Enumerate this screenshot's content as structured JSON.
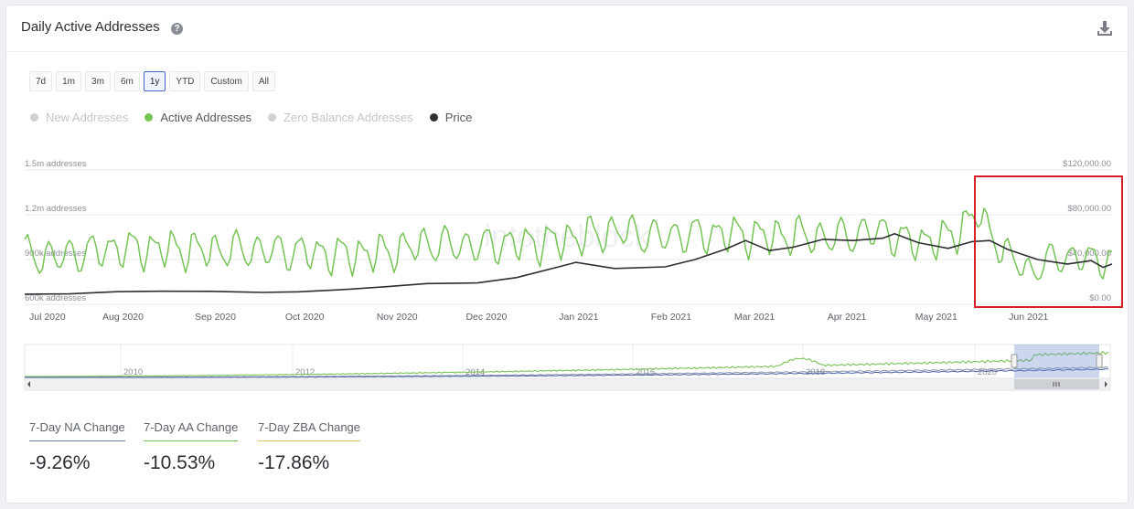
{
  "header": {
    "title": "Daily Active Addresses",
    "help_icon": "question-circle-icon",
    "download_icon": "download-icon"
  },
  "ranges": [
    {
      "label": "7d",
      "active": false
    },
    {
      "label": "1m",
      "active": false
    },
    {
      "label": "3m",
      "active": false
    },
    {
      "label": "6m",
      "active": false
    },
    {
      "label": "1y",
      "active": true
    },
    {
      "label": "YTD",
      "active": false
    },
    {
      "label": "Custom",
      "active": false
    },
    {
      "label": "All",
      "active": false
    }
  ],
  "legend": [
    {
      "label": "New Addresses",
      "color": "#cfd1d4",
      "active": false
    },
    {
      "label": "Active Addresses",
      "color": "#76c356",
      "active": true
    },
    {
      "label": "Zero Balance Addresses",
      "color": "#cfd1d4",
      "active": false
    },
    {
      "label": "Price",
      "color": "#2d2f33",
      "active": true
    }
  ],
  "watermark": "intotheblock",
  "chart_data": {
    "type": "line",
    "left_axis": {
      "ticks": [
        "1.5m addresses",
        "1.2m addresses",
        "900k addresses",
        "600k addresses"
      ],
      "values": [
        1500000,
        1200000,
        900000,
        600000
      ]
    },
    "right_axis": {
      "ticks": [
        "$120,000.00",
        "$80,000.00",
        "$40,000.00",
        "$0.00"
      ],
      "values": [
        120000,
        80000,
        40000,
        0
      ]
    },
    "x_ticks": [
      "Jul 2020",
      "Aug 2020",
      "Sep 2020",
      "Oct 2020",
      "Nov 2020",
      "Dec 2020",
      "Jan 2021",
      "Feb 2021",
      "Mar 2021",
      "Apr 2021",
      "May 2021",
      "Jun 2021"
    ],
    "series": [
      {
        "name": "Active Addresses",
        "color": "#76c356",
        "axis": "left",
        "anchors": [
          [
            0,
            920000
          ],
          [
            10,
            900000
          ],
          [
            20,
            930000
          ],
          [
            30,
            960000
          ],
          [
            45,
            960000
          ],
          [
            60,
            950000
          ],
          [
            75,
            950000
          ],
          [
            90,
            940000
          ],
          [
            105,
            920000
          ],
          [
            120,
            930000
          ],
          [
            135,
            990000
          ],
          [
            150,
            980000
          ],
          [
            160,
            990000
          ],
          [
            175,
            1000000
          ],
          [
            190,
            1050000
          ],
          [
            200,
            1080000
          ],
          [
            210,
            1040000
          ],
          [
            220,
            1050000
          ],
          [
            235,
            1060000
          ],
          [
            250,
            1040000
          ],
          [
            260,
            1050000
          ],
          [
            270,
            1030000
          ],
          [
            280,
            1060000
          ],
          [
            288,
            1080000
          ],
          [
            295,
            1010000
          ],
          [
            303,
            1010000
          ],
          [
            310,
            1030000
          ],
          [
            320,
            1200000
          ],
          [
            328,
            950000
          ],
          [
            338,
            800000
          ],
          [
            345,
            900000
          ],
          [
            355,
            900000
          ],
          [
            365,
            880000
          ]
        ],
        "noise_amplitude": [
          140000,
          120000
        ]
      },
      {
        "name": "Price",
        "color": "#2d2f33",
        "axis": "right",
        "points": [
          [
            0,
            9100
          ],
          [
            15,
            9300
          ],
          [
            31,
            11300
          ],
          [
            45,
            11700
          ],
          [
            62,
            11600
          ],
          [
            80,
            10600
          ],
          [
            92,
            11200
          ],
          [
            106,
            13000
          ],
          [
            122,
            15800
          ],
          [
            135,
            18500
          ],
          [
            152,
            19100
          ],
          [
            165,
            23800
          ],
          [
            180,
            34000
          ],
          [
            185,
            37500
          ],
          [
            198,
            32000
          ],
          [
            215,
            33500
          ],
          [
            225,
            40000
          ],
          [
            235,
            49000
          ],
          [
            242,
            57000
          ],
          [
            250,
            48000
          ],
          [
            258,
            51000
          ],
          [
            268,
            58000
          ],
          [
            278,
            57000
          ],
          [
            288,
            59000
          ],
          [
            292,
            63000
          ],
          [
            300,
            55000
          ],
          [
            310,
            50000
          ],
          [
            318,
            56000
          ],
          [
            324,
            57000
          ],
          [
            330,
            49000
          ],
          [
            340,
            40000
          ],
          [
            350,
            36000
          ],
          [
            358,
            39000
          ],
          [
            362,
            33000
          ],
          [
            365,
            36000
          ]
        ]
      }
    ],
    "navigator": {
      "x_ticks": [
        "2010",
        "2012",
        "2014",
        "2016",
        "2018",
        "2020"
      ]
    }
  },
  "stats": [
    {
      "label": "7-Day NA Change",
      "value": "-9.26%",
      "color": "#6a7f9f"
    },
    {
      "label": "7-Day AA Change",
      "value": "-10.53%",
      "color": "#76c356"
    },
    {
      "label": "7-Day ZBA Change",
      "value": "-17.86%",
      "color": "#d8c15a"
    }
  ],
  "highlight_color": "#d6202a"
}
